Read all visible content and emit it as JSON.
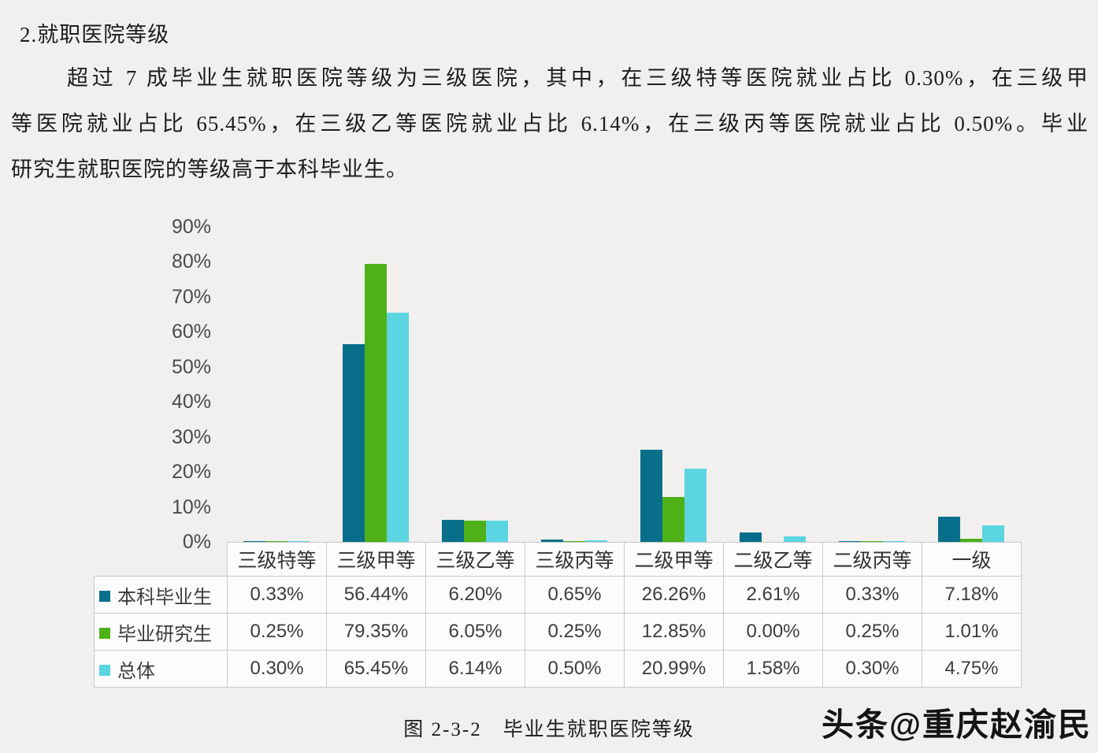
{
  "page": {
    "heading": "2.就职医院等级",
    "paragraph_lines": [
      "超过 7 成毕业生就职医院等级为三级医院，其中，在三级特等医院就业占比 0.30%，在三级甲",
      "等医院就业占比 65.45%，在三级乙等医院就业占比 6.14%，在三级丙等医院就业占比 0.50%。毕业",
      "研究生就职医院的等级高于本科毕业生。"
    ],
    "caption": "图 2-3-2　毕业生就职医院等级",
    "watermark": "头条@重庆赵渝民"
  },
  "chart_data": {
    "type": "bar",
    "title": "毕业生就职医院等级",
    "xlabel": "",
    "ylabel": "",
    "ylim": [
      0,
      90
    ],
    "grid": false,
    "legend_position": "table-left",
    "value_suffix": "%",
    "y_ticks": [
      "90%",
      "80%",
      "70%",
      "60%",
      "50%",
      "40%",
      "30%",
      "20%",
      "10%",
      "0%"
    ],
    "categories": [
      "三级特等",
      "三级甲等",
      "三级乙等",
      "三级丙等",
      "二级甲等",
      "二级乙等",
      "二级丙等",
      "一级"
    ],
    "series": [
      {
        "name": "本科毕业生",
        "color": "#076f8a",
        "values": [
          0.33,
          56.44,
          6.2,
          0.65,
          26.26,
          2.61,
          0.33,
          7.18
        ]
      },
      {
        "name": "毕业研究生",
        "color": "#4db117",
        "values": [
          0.25,
          79.35,
          6.05,
          0.25,
          12.85,
          0.0,
          0.25,
          1.01
        ]
      },
      {
        "name": "总体",
        "color": "#5bd5e1",
        "values": [
          0.3,
          65.45,
          6.14,
          0.5,
          20.99,
          1.58,
          0.3,
          4.75
        ]
      }
    ]
  }
}
